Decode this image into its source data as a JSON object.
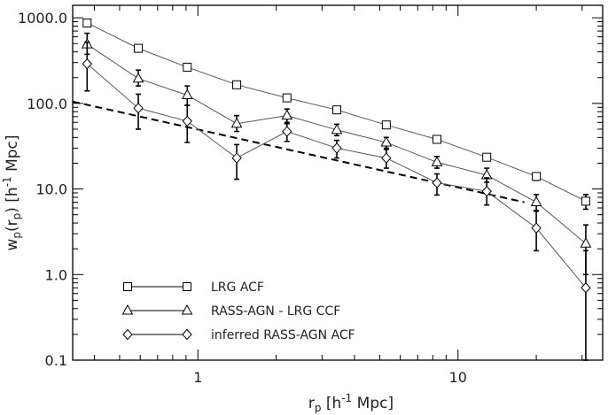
{
  "chart_data": {
    "type": "line",
    "xscale": "log",
    "yscale": "log",
    "xlim": [
      0.33,
      36
    ],
    "ylim": [
      0.1,
      1400
    ],
    "xticks": [
      {
        "value": 1,
        "label": "1"
      },
      {
        "value": 10,
        "label": "10"
      }
    ],
    "yticks": [
      {
        "value": 0.1,
        "label": "0.1"
      },
      {
        "value": 1,
        "label": "1.0"
      },
      {
        "value": 10,
        "label": "10.0"
      },
      {
        "value": 100,
        "label": "100.0"
      },
      {
        "value": 1000,
        "label": "1000.0"
      }
    ],
    "xlabel": {
      "main": "r",
      "sub": "p",
      "rest": " [h",
      "sup": "-1",
      "end": " Mpc]"
    },
    "ylabel": {
      "main": "w",
      "sub": "p",
      "mid": "(r",
      "sub2": "p",
      "mid2": ") [h",
      "sup": "-1",
      "end": " Mpc]"
    },
    "grid": false,
    "legend_position": "bottom-left",
    "series": [
      {
        "name": "LRG ACF",
        "marker": "square",
        "points": [
          {
            "x": 0.375,
            "y": 870,
            "lo": 820,
            "hi": 930
          },
          {
            "x": 0.59,
            "y": 440,
            "lo": 405,
            "hi": 478
          },
          {
            "x": 0.91,
            "y": 265,
            "lo": 245,
            "hi": 285
          },
          {
            "x": 1.41,
            "y": 165,
            "lo": 152,
            "hi": 178
          },
          {
            "x": 2.2,
            "y": 116,
            "lo": 107,
            "hi": 125
          },
          {
            "x": 3.42,
            "y": 84,
            "lo": 77,
            "hi": 91
          },
          {
            "x": 5.3,
            "y": 56,
            "lo": 51,
            "hi": 61
          },
          {
            "x": 8.3,
            "y": 38,
            "lo": 35,
            "hi": 41
          },
          {
            "x": 12.9,
            "y": 23.5,
            "lo": 21.5,
            "hi": 25.5
          },
          {
            "x": 20,
            "y": 14,
            "lo": 12.6,
            "hi": 15.4
          },
          {
            "x": 31,
            "y": 7.2,
            "lo": 5.8,
            "hi": 8.6
          }
        ]
      },
      {
        "name": "RASS-AGN - LRG CCF",
        "marker": "triangle",
        "points": [
          {
            "x": 0.375,
            "y": 490,
            "lo": 375,
            "hi": 660
          },
          {
            "x": 0.59,
            "y": 195,
            "lo": 160,
            "hi": 245
          },
          {
            "x": 0.91,
            "y": 125,
            "lo": 95,
            "hi": 160
          },
          {
            "x": 1.41,
            "y": 58,
            "lo": 47,
            "hi": 72
          },
          {
            "x": 2.2,
            "y": 72,
            "lo": 60,
            "hi": 86
          },
          {
            "x": 3.42,
            "y": 49,
            "lo": 42,
            "hi": 57
          },
          {
            "x": 5.3,
            "y": 35,
            "lo": 30,
            "hi": 40
          },
          {
            "x": 8.3,
            "y": 20.5,
            "lo": 17.5,
            "hi": 24
          },
          {
            "x": 12.9,
            "y": 14.5,
            "lo": 12,
            "hi": 17.5
          },
          {
            "x": 20,
            "y": 7,
            "lo": 5.5,
            "hi": 8.6
          },
          {
            "x": 31,
            "y": 2.3,
            "lo": 1.0,
            "hi": 3.8
          }
        ]
      },
      {
        "name": "inferred RASS-AGN ACF",
        "marker": "diamond",
        "points": [
          {
            "x": 0.375,
            "y": 290,
            "lo": 140,
            "hi": 520
          },
          {
            "x": 0.59,
            "y": 88,
            "lo": 50,
            "hi": 128
          },
          {
            "x": 0.91,
            "y": 62,
            "lo": 35,
            "hi": 95
          },
          {
            "x": 1.41,
            "y": 23,
            "lo": 13,
            "hi": 33
          },
          {
            "x": 2.2,
            "y": 47,
            "lo": 36,
            "hi": 58
          },
          {
            "x": 3.42,
            "y": 30,
            "lo": 23,
            "hi": 37
          },
          {
            "x": 5.3,
            "y": 23,
            "lo": 17.5,
            "hi": 29
          },
          {
            "x": 8.3,
            "y": 11.8,
            "lo": 8.5,
            "hi": 15
          },
          {
            "x": 12.9,
            "y": 9.4,
            "lo": 6.5,
            "hi": 13.5
          },
          {
            "x": 20,
            "y": 3.5,
            "lo": 1.9,
            "hi": 5.6
          },
          {
            "x": 31,
            "y": 0.7,
            "lo": 0.1,
            "hi": 1.9
          }
        ]
      }
    ],
    "reference_line": {
      "style": "dashed",
      "points": [
        {
          "x": 0.33,
          "y": 105
        },
        {
          "x": 18,
          "y": 7
        }
      ]
    }
  }
}
